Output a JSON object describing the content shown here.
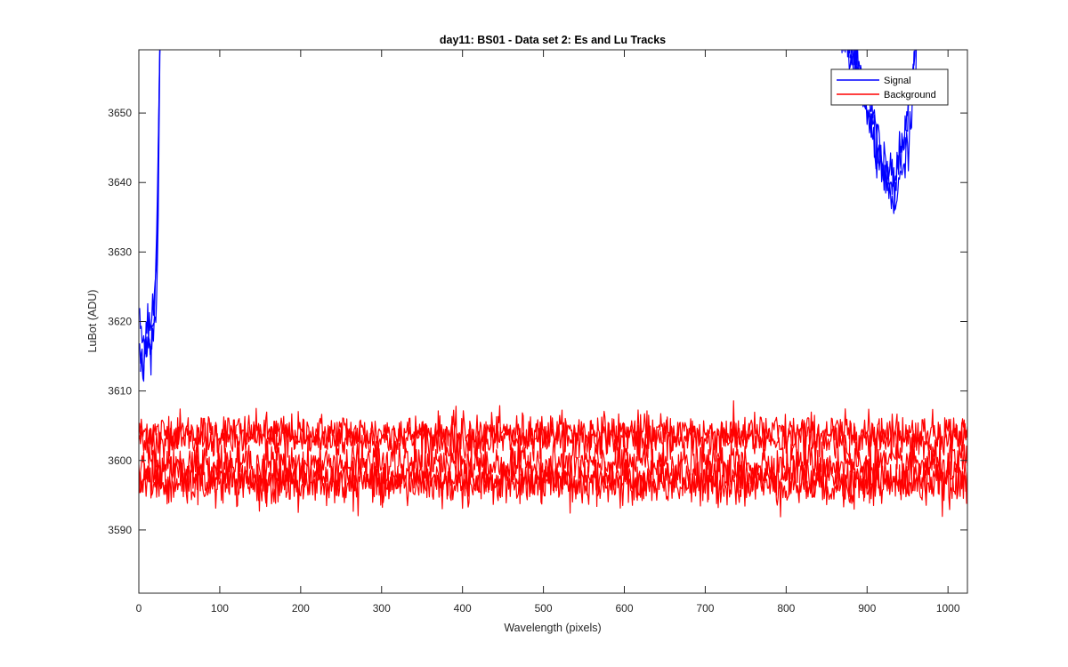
{
  "chart_data": {
    "type": "line",
    "title": "day11: BS01 - Data set 2: Es and Lu Tracks",
    "xlabel": "Wavelength (pixels)",
    "ylabel": "LuBot (ADU)",
    "xlim": [
      0,
      1024
    ],
    "ylim": [
      3580.9,
      3659.1
    ],
    "xticks": [
      0,
      100,
      200,
      300,
      400,
      500,
      600,
      700,
      800,
      900,
      1000
    ],
    "yticks": [
      3590,
      3600,
      3610,
      3620,
      3630,
      3640,
      3650
    ],
    "grid": false,
    "legend": {
      "location": "top-right",
      "entries": [
        {
          "label": "Signal",
          "color": "#0000ff"
        },
        {
          "label": "Background",
          "color": "#ff0000"
        }
      ]
    },
    "series": [
      {
        "name": "Signal",
        "color": "#0000ff",
        "traces": [
          {
            "x": [
              0,
              5,
              10,
              15,
              18,
              20,
              22,
              24,
              25,
              26
            ],
            "y": [
              3616,
              3614,
              3618,
              3617,
              3620,
              3624,
              3632,
              3645,
              3655,
              3662
            ]
          },
          {
            "x": [
              1,
              6,
              11,
              16,
              19,
              21,
              23,
              24.5,
              25.5,
              26.5
            ],
            "y": [
              3618,
              3616,
              3620,
              3619,
              3622,
              3626,
              3634,
              3647,
              3657,
              3662
            ]
          },
          {
            "x": [
              2,
              7,
              12,
              17,
              20,
              22,
              24,
              25,
              26,
              27
            ],
            "y": [
              3614,
              3615,
              3616,
              3618,
              3621,
              3625,
              3633,
              3646,
              3656,
              3662
            ]
          },
          {
            "x": [
              868,
              880,
              895,
              905,
              915,
              925,
              932,
              940,
              948,
              955,
              962
            ],
            "y": [
              3662,
              3658,
              3652,
              3648,
              3643,
              3640,
              3639,
              3643,
              3648,
              3655,
              3662
            ]
          },
          {
            "x": [
              870,
              882,
              897,
              907,
              917,
              927,
              934,
              942,
              950,
              957,
              963
            ],
            "y": [
              3662,
              3659,
              3654,
              3650,
              3645,
              3642,
              3641,
              3645,
              3650,
              3657,
              3662
            ]
          },
          {
            "x": [
              872,
              884,
              899,
              909,
              919,
              929,
              936,
              944,
              952,
              959,
              964
            ],
            "y": [
              3662,
              3657,
              3651,
              3646,
              3642,
              3638,
              3637,
              3641,
              3647,
              3654,
              3662
            ]
          }
        ]
      },
      {
        "name": "Background",
        "color": "#ff0000",
        "traces": [
          {
            "x": [
              0,
              1024
            ],
            "y": [
              3604,
              3604
            ],
            "noise": 1.4
          },
          {
            "x": [
              0,
              1024
            ],
            "y": [
              3603,
              3603
            ],
            "noise": 1.4
          },
          {
            "x": [
              0,
              1024
            ],
            "y": [
              3599.5,
              3599.5
            ],
            "noise": 1.5
          },
          {
            "x": [
              0,
              1024
            ],
            "y": [
              3597.5,
              3597.5
            ],
            "noise": 1.5
          },
          {
            "x": [
              0,
              1024
            ],
            "y": [
              3596.5,
              3596.5
            ],
            "noise": 1.5
          }
        ]
      }
    ]
  }
}
